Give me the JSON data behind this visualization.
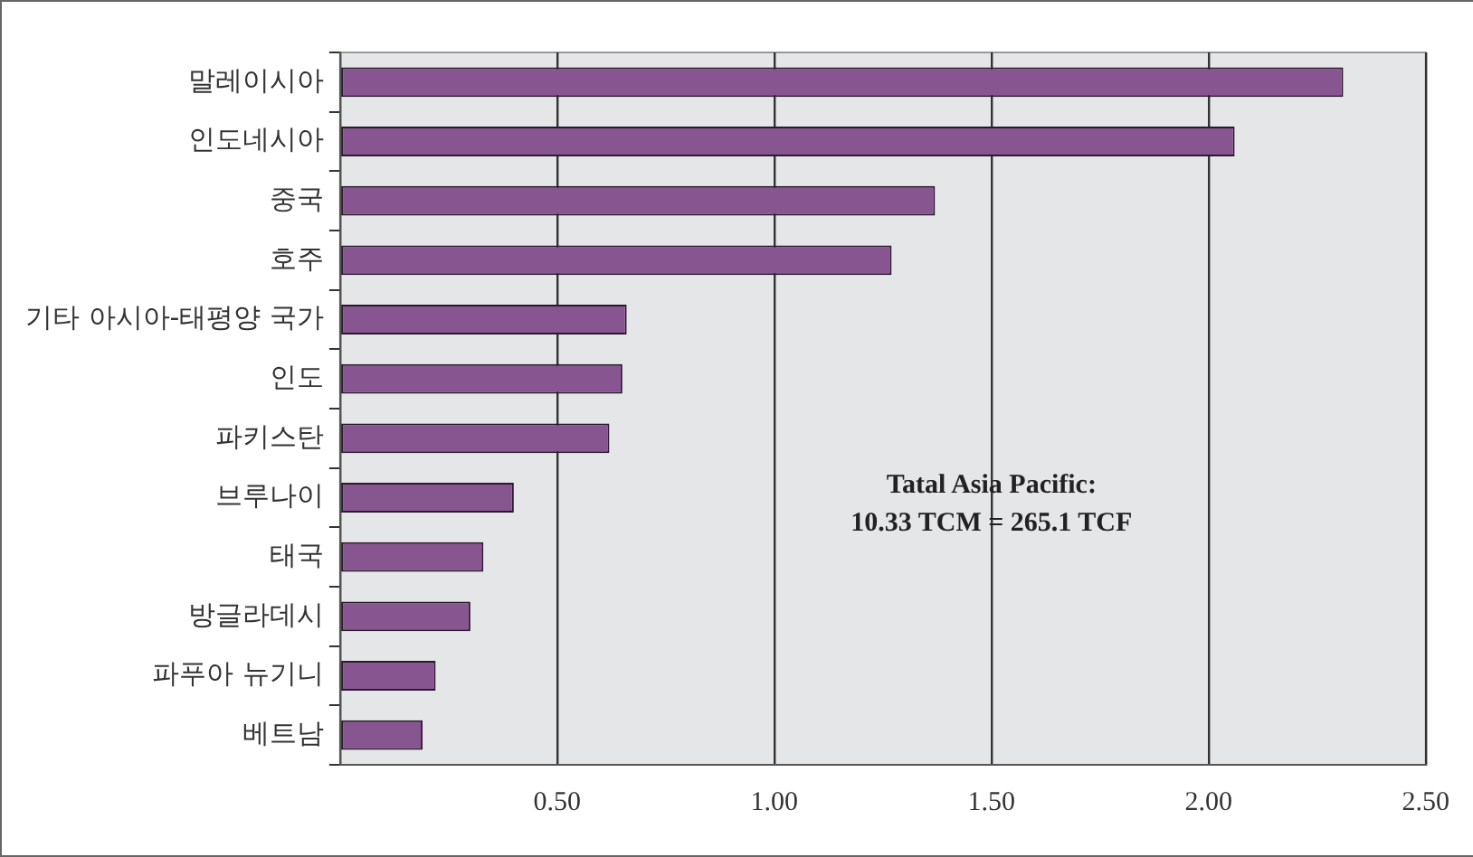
{
  "chart_data": {
    "type": "bar",
    "orientation": "horizontal",
    "categories": [
      "말레이시아",
      "인도네시아",
      "중국",
      "호주",
      "기타 아시아-태평양 국가",
      "인도",
      "파키스탄",
      "브루나이",
      "태국",
      "방글라데시",
      "파푸아 뉴기니",
      "베트남"
    ],
    "values": [
      2.31,
      2.06,
      1.37,
      1.27,
      0.66,
      0.65,
      0.62,
      0.4,
      0.33,
      0.3,
      0.22,
      0.19
    ],
    "color": "#87558f",
    "xlim": [
      0,
      2.5
    ],
    "xticks": [
      {
        "value": 0,
        "label": null
      },
      {
        "value": 0.5,
        "label": "0.50"
      },
      {
        "value": 1,
        "label": "1.00"
      },
      {
        "value": 1.5,
        "label": "1.50"
      },
      {
        "value": 2,
        "label": "2.00"
      },
      {
        "value": 2.5,
        "label": "2.50"
      }
    ],
    "grid": "x",
    "legend": false,
    "annotations": [
      "Tatal Asia Pacific:",
      "10.33 TCM = 265.1 TCF"
    ]
  }
}
